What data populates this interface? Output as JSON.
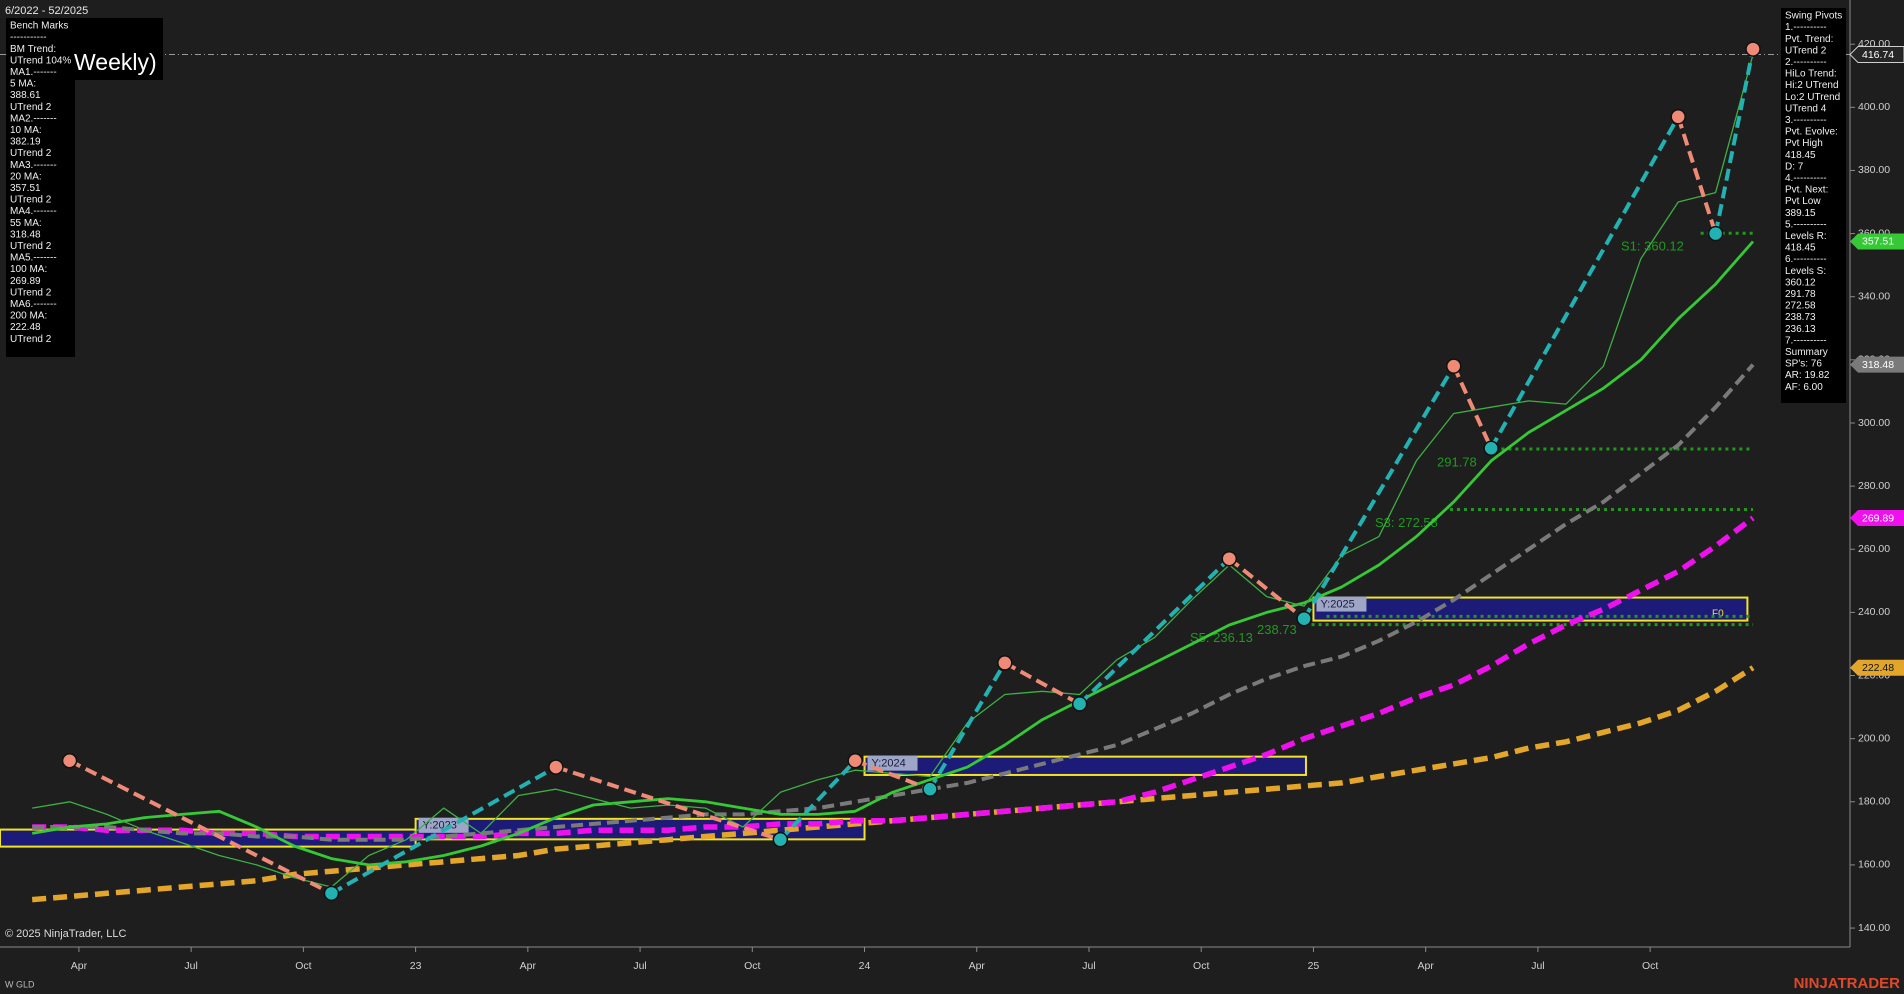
{
  "chart_data": {
    "type": "line",
    "title": "Weekly)",
    "date_range": "6/2022 - 52/2025",
    "categories": [
      null,
      null,
      "Apr",
      null,
      null,
      "Jul",
      null,
      null,
      "Oct",
      null,
      null,
      "23",
      null,
      null,
      "Apr",
      null,
      null,
      "Jul",
      null,
      null,
      "Oct",
      null,
      null,
      "24",
      null,
      null,
      "Apr",
      null,
      null,
      "Jul",
      null,
      null,
      "Oct",
      null,
      null,
      "25",
      null,
      null,
      "Apr",
      null,
      null,
      "Jul",
      null,
      null,
      "Oct",
      null,
      null
    ],
    "ylim": [
      134,
      434
    ],
    "yticks": [
      {
        "value": 140,
        "label": "140.00"
      },
      {
        "value": 160,
        "label": "160.00"
      },
      {
        "value": 180,
        "label": "180.00"
      },
      {
        "value": 200,
        "label": "200.00"
      },
      {
        "value": 220,
        "label": "220.00"
      },
      {
        "value": 240,
        "label": "240.00"
      },
      {
        "value": 260,
        "label": "260.00"
      },
      {
        "value": 280,
        "label": "280.00"
      },
      {
        "value": 300,
        "label": "300.00"
      },
      {
        "value": 320,
        "label": "320.00"
      },
      {
        "value": 340,
        "label": "340.00"
      },
      {
        "value": 360,
        "label": "360.00"
      },
      {
        "value": 380,
        "label": "380.00"
      },
      {
        "value": 400,
        "label": "400.00"
      },
      {
        "value": 420,
        "label": "420.00"
      }
    ],
    "series": [
      {
        "color": "#3cb043",
        "values": [
          178,
          180,
          176,
          171,
          167,
          163,
          160,
          156,
          153,
          163,
          168,
          178,
          170,
          182,
          184,
          181,
          178,
          179,
          178,
          172,
          183,
          187,
          190,
          189,
          188,
          205,
          214,
          215,
          214,
          225,
          232,
          244,
          255,
          245,
          242,
          258,
          264,
          288,
          303,
          305,
          307,
          306,
          318,
          352,
          370,
          373,
          416.74
        ]
      },
      {
        "color": "#35c935",
        "values": [
          170,
          172,
          173,
          175,
          176,
          177,
          172,
          166,
          162,
          160,
          161,
          163,
          166,
          170,
          175,
          179,
          180,
          181,
          180,
          178,
          176,
          176,
          177,
          183,
          187,
          191,
          198,
          206,
          212,
          218,
          224,
          230,
          236,
          240,
          243,
          248,
          255,
          264,
          275,
          288,
          297,
          304,
          311,
          320,
          333,
          344,
          357.51
        ]
      },
      {
        "color": "#7a7a7a",
        "values": [
          172,
          172,
          172,
          171,
          170,
          170,
          169,
          169,
          168,
          168,
          168,
          169,
          170,
          171,
          172,
          173,
          174,
          175,
          176,
          176,
          177,
          178,
          180,
          182,
          184,
          186,
          189,
          192,
          195,
          198,
          203,
          208,
          214,
          219,
          223,
          226,
          231,
          237,
          244,
          252,
          260,
          268,
          275,
          284,
          293,
          305,
          318.48
        ]
      },
      {
        "color": "#ee11ee",
        "values": [
          172,
          172,
          171,
          171,
          171,
          170,
          170,
          169,
          169,
          169,
          169,
          169,
          169,
          170,
          170,
          171,
          171,
          171,
          172,
          172,
          173,
          173,
          174,
          174,
          175,
          176,
          177,
          178,
          179,
          180,
          183,
          187,
          191,
          195,
          200,
          204,
          208,
          213,
          217,
          223,
          230,
          236,
          241,
          247,
          253,
          261,
          269.89
        ]
      },
      {
        "color": "#e3a62a",
        "values": [
          149,
          150,
          151,
          152,
          153,
          154,
          155,
          157,
          158,
          159,
          160,
          161,
          162,
          163,
          165,
          166,
          167,
          168,
          169,
          170,
          171,
          172,
          173,
          174,
          175,
          176,
          177,
          178,
          179,
          180,
          181,
          182,
          183,
          184,
          185,
          186,
          188,
          190,
          192,
          194,
          197,
          199,
          202,
          205,
          209,
          215,
          222.48
        ]
      }
    ],
    "pivots": {
      "high_color": "#ef8a76",
      "low_color": "#22b2b2",
      "values": [
        null,
        193,
        null,
        null,
        null,
        null,
        null,
        null,
        151,
        null,
        null,
        null,
        null,
        null,
        191,
        null,
        null,
        null,
        null,
        null,
        168,
        null,
        193,
        null,
        184,
        null,
        224,
        null,
        211,
        null,
        null,
        null,
        257,
        null,
        238,
        null,
        null,
        null,
        318,
        292,
        null,
        null,
        null,
        null,
        397,
        360,
        418.45
      ]
    },
    "support_levels": [
      {
        "label": "S1: 360.12",
        "value": 360.12,
        "color": "#1f9a1f"
      },
      {
        "label": "291.78",
        "value": 291.78,
        "color": "#1f9a1f"
      },
      {
        "label": "S3: 272.58",
        "value": 272.58,
        "color": "#1f9a1f"
      },
      {
        "label": "238.73",
        "value": 238.73,
        "color": "#1f9a1f"
      },
      {
        "label": "S5: 236.13",
        "value": 236.13,
        "color": "#1f9a1f"
      }
    ],
    "year_boxes": [
      {
        "low": 165.8,
        "high": 171.2
      },
      {
        "label": "Y:2023",
        "low": 168.1,
        "high": 174.6
      },
      {
        "label": "Y:2024",
        "low": 188.5,
        "high": 194.3
      },
      {
        "label": "Y:2025",
        "low": 237.4,
        "high": 244.7
      }
    ],
    "fib_label": "F0"
  },
  "bench_marks": [
    "Bench Marks",
    "-----------",
    "BM Trend:",
    "UTrend 104%",
    "MA1.-------",
    "5 MA:",
    "388.61",
    "UTrend 2",
    "MA2.-------",
    "10 MA:",
    "382.19",
    "UTrend 2",
    "MA3.-------",
    "20 MA:",
    "357.51",
    "UTrend 2",
    "MA4.-------",
    "55 MA:",
    "318.48",
    "UTrend 2",
    "MA5.-------",
    "100 MA:",
    "269.89",
    "UTrend 2",
    "MA6.-------",
    "200 MA:",
    "222.48",
    "UTrend 2"
  ],
  "swing_pivots": [
    "Swing Pivots",
    "1.----------",
    "Pvt. Trend:",
    "UTrend 2",
    "2.----------",
    "HiLo Trend:",
    "Hi:2 UTrend",
    "Lo:2 UTrend",
    "UTrend 4",
    "3.----------",
    "Pvt. Evolve:",
    "Pvt High",
    "418.45",
    "D: 7",
    "4.----------",
    "Pvt. Next:",
    "Pvt Low",
    "389.15",
    "5.----------",
    "Levels R:",
    "418.45",
    "6.----------",
    "Levels S:",
    "360.12",
    "291.78",
    "272.58",
    "238.73",
    "236.13",
    "7.----------",
    "Summary",
    "SP's: 76",
    "AR: 19.82",
    "AF: 6.00"
  ],
  "footer": {
    "copyright": "© 2025 NinjaTrader, LLC",
    "symbol": "W GLD",
    "brand": "NINJATRADER"
  }
}
